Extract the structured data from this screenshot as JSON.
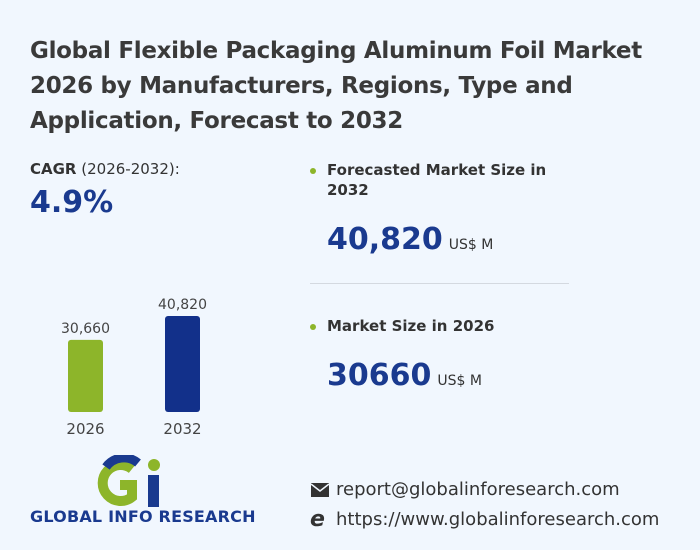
{
  "title": "Global Flexible Packaging Aluminum Foil Market 2026 by Manufacturers, Regions, Type and Application, Forecast to 2032",
  "cagr": {
    "label": "CAGR",
    "period": "(2026-2032):",
    "value": "4.9%"
  },
  "forecast": {
    "label": "Forecasted Market Size in 2032",
    "value": "40,820",
    "unit": "US$ M"
  },
  "current": {
    "label": "Market Size in 2026",
    "value": "30660",
    "unit": "US$ M"
  },
  "contact": {
    "email": "report@globalinforesearch.com",
    "website": "https://www.globalinforesearch.com",
    "email_icon": "envelope-icon",
    "web_icon": "ie-browser-icon"
  },
  "logo": {
    "text": "GLOBAL INFO RESEARCH"
  },
  "colors": {
    "green": "#8db52a",
    "navy": "#1a3a8f"
  },
  "chart_data": {
    "type": "bar",
    "categories": [
      "2026",
      "2032"
    ],
    "values": [
      30660,
      40820
    ],
    "data_labels": [
      "30,660",
      "40,820"
    ],
    "colors": [
      "#8db52a",
      "#12308a"
    ],
    "grid": false
  }
}
